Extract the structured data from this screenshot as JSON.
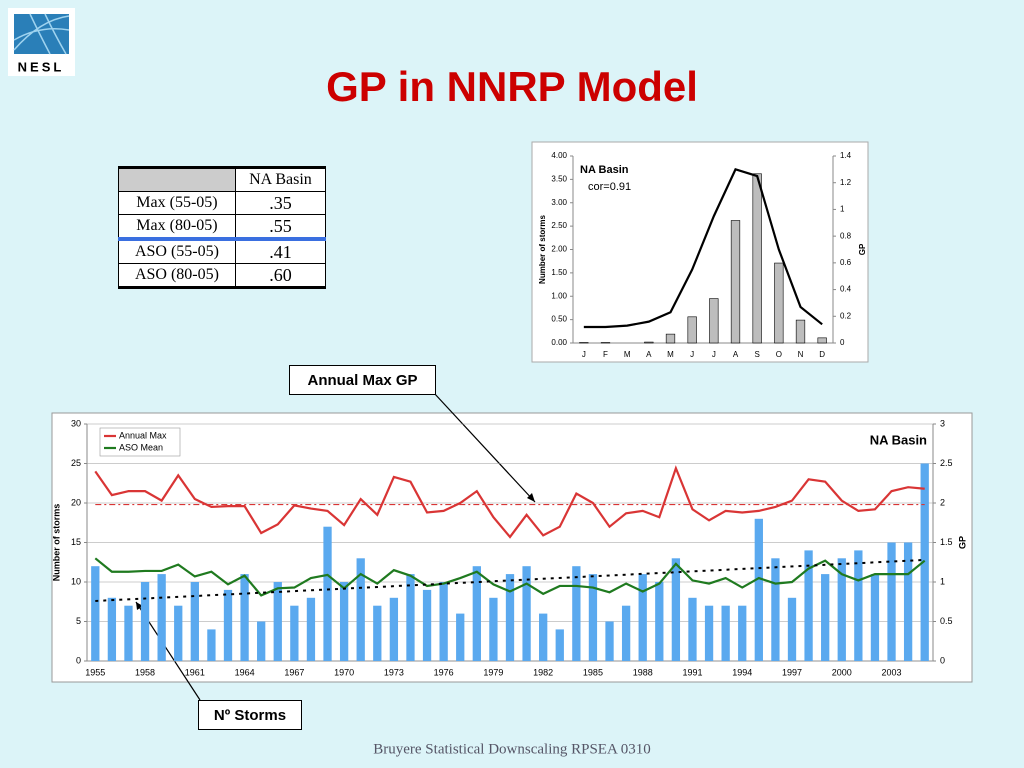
{
  "logo": "NESL",
  "title": "GP in NNRP Model",
  "footer": "Bruyere Statistical Downscaling RPSEA 0310",
  "table": {
    "header": [
      "NA Basin"
    ],
    "rows": [
      [
        "Max (55-05)",
        ".35"
      ],
      [
        "Max (80-05)",
        ".55"
      ],
      [
        "ASO (55-05)",
        ".41"
      ],
      [
        "ASO (80-05)",
        ".60"
      ]
    ]
  },
  "callouts": [
    "Annual Max GP",
    "Nº Storms"
  ],
  "chart_data": [
    {
      "type": "bar",
      "annotations": [
        "NA Basin",
        "cor=0.91"
      ],
      "ylabel": "Number of storms",
      "y2label": "GP",
      "categories": [
        "J",
        "F",
        "M",
        "A",
        "M",
        "J",
        "J",
        "A",
        "S",
        "O",
        "N",
        "D"
      ],
      "series": [
        {
          "type": "bar",
          "color": "#bdbdbd",
          "values": [
            0.01,
            0.01,
            0,
            0.02,
            0.19,
            0.56,
            0.95,
            2.62,
            3.62,
            1.71,
            0.49,
            0.11
          ]
        },
        {
          "type": "line",
          "axis": "y2",
          "color": "#000000",
          "values": [
            0.12,
            0.12,
            0.13,
            0.16,
            0.23,
            0.55,
            0.95,
            1.3,
            1.25,
            0.7,
            0.27,
            0.14
          ]
        }
      ],
      "ylim": [
        0,
        4
      ],
      "yticks": [
        {
          "value": 0,
          "label": "0.00"
        },
        {
          "value": 0.5,
          "label": "0.50"
        },
        {
          "value": 1,
          "label": "1.00"
        },
        {
          "value": 1.5,
          "label": "1.50"
        },
        {
          "value": 2,
          "label": "2.00"
        },
        {
          "value": 2.5,
          "label": "2.50"
        },
        {
          "value": 3,
          "label": "3.00"
        },
        {
          "value": 3.5,
          "label": "3.50"
        },
        {
          "value": 4,
          "label": "4.00"
        }
      ],
      "y2lim": [
        0,
        1.4
      ],
      "y2ticks": [
        0,
        0.2,
        0.4,
        0.6,
        0.8,
        1,
        1.2,
        1.4
      ],
      "grid": false
    },
    {
      "type": "bar",
      "annotations": [
        "NA Basin"
      ],
      "ylabel": "Number of storms",
      "y2label": "GP",
      "categories": [
        "1955",
        null,
        null,
        "1958",
        null,
        null,
        "1961",
        null,
        null,
        "1964",
        null,
        null,
        "1967",
        null,
        null,
        "1970",
        null,
        null,
        "1973",
        null,
        null,
        "1976",
        null,
        null,
        "1979",
        null,
        null,
        "1982",
        null,
        null,
        "1985",
        null,
        null,
        "1988",
        null,
        null,
        "1991",
        null,
        null,
        "1994",
        null,
        null,
        "1997",
        null,
        null,
        "2000",
        null,
        null,
        "2003",
        null,
        null
      ],
      "series": [
        {
          "type": "bar",
          "color": "#5aa9ef",
          "values": [
            12,
            8,
            7,
            10,
            11,
            7,
            10,
            4,
            9,
            11,
            5,
            10,
            7,
            8,
            17,
            10,
            13,
            7,
            8,
            11,
            9,
            10,
            6,
            12,
            8,
            11,
            12,
            6,
            4,
            12,
            11,
            5,
            7,
            11,
            10,
            13,
            8,
            7,
            7,
            7,
            18,
            13,
            8,
            14,
            11,
            13,
            14,
            11,
            15,
            15,
            25
          ]
        },
        {
          "type": "line",
          "axis": "y2",
          "name": "Annual Max",
          "color": "#d93535",
          "values": [
            2.4,
            2.1,
            2.15,
            2.15,
            2.03,
            2.35,
            2.05,
            1.95,
            1.96,
            1.96,
            1.62,
            1.73,
            1.97,
            1.93,
            1.9,
            1.72,
            2.05,
            1.85,
            2.33,
            2.27,
            1.88,
            1.9,
            2.0,
            2.15,
            1.82,
            1.57,
            1.85,
            1.59,
            1.7,
            2.12,
            2.0,
            1.7,
            1.87,
            1.9,
            1.82,
            2.44,
            1.92,
            1.78,
            1.9,
            1.88,
            1.9,
            1.95,
            2.03,
            2.3,
            2.27,
            2.03,
            1.9,
            1.92,
            2.15,
            2.2,
            2.18
          ]
        },
        {
          "type": "line",
          "axis": "y2",
          "name": "ASO  Mean",
          "color": "#1f7a1f",
          "values": [
            1.3,
            1.13,
            1.13,
            1.14,
            1.14,
            1.22,
            1.07,
            1.13,
            0.97,
            1.08,
            0.83,
            0.92,
            0.93,
            1.05,
            1.09,
            0.92,
            1.1,
            0.98,
            1.15,
            1.08,
            0.95,
            0.98,
            1.05,
            1.13,
            0.97,
            0.88,
            0.98,
            0.85,
            0.95,
            0.95,
            0.93,
            0.87,
            0.98,
            0.88,
            0.98,
            1.23,
            1.02,
            0.98,
            1.05,
            0.93,
            1.05,
            0.98,
            1.0,
            1.17,
            1.27,
            1.1,
            1.02,
            1.1,
            1.1,
            1.1,
            1.27
          ]
        }
      ],
      "trendlines": [
        {
          "axis": "y2",
          "color": "#d93535",
          "start": 1.98,
          "end": 1.98
        },
        {
          "axis": "y",
          "color": "#000000",
          "start": 7.6,
          "end": 12.8
        }
      ],
      "ylim": [
        0,
        30
      ],
      "yticks": [
        0,
        5,
        10,
        15,
        20,
        25,
        30
      ],
      "y2lim": [
        0,
        3
      ],
      "y2ticks": [
        0,
        0.5,
        1,
        1.5,
        2,
        2.5,
        3
      ],
      "grid": true,
      "legend": "upper left"
    }
  ]
}
